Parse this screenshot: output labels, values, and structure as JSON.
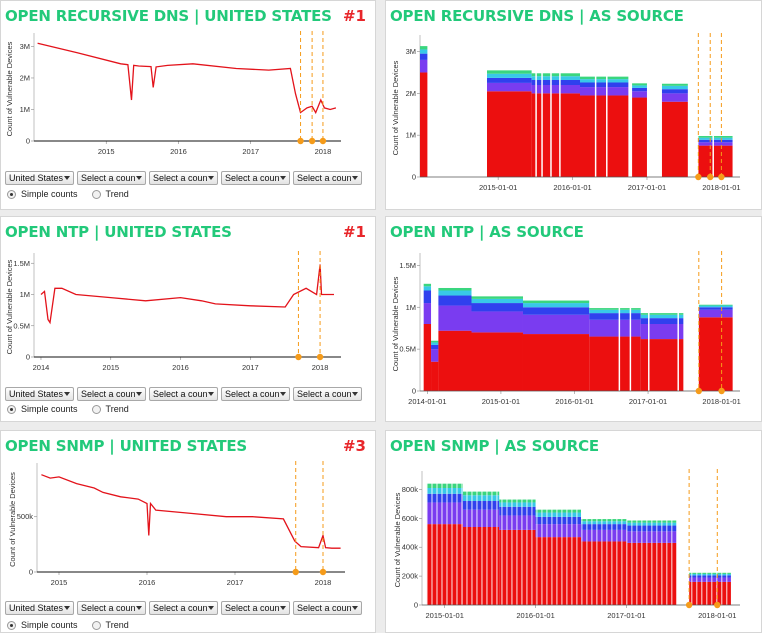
{
  "dropdowns": {
    "country_selected": "United States",
    "placeholder": "Select a coun"
  },
  "radio": {
    "simple": "Simple counts",
    "trend": "Trend"
  },
  "colors": {
    "title_green": "#22c97a",
    "rank_red": "#e8262a",
    "line_red": "#e3131b",
    "marker_orange": "#f59b1a",
    "stack_red": "#ec0f0f",
    "stack_purple": "#7a3cf0",
    "stack_blue": "#3040ee",
    "stack_cyan": "#38c8e8",
    "stack_green": "#3ad67e"
  },
  "panels": [
    {
      "title": "OPEN RECURSIVE DNS | UNITED STATES",
      "rank": "#1",
      "kind": "line",
      "chart_data": {
        "type": "line",
        "ylabel": "Count of Vulnerable Devices",
        "yticks": [
          {
            "v": 0,
            "t": "0"
          },
          {
            "v": 1000000,
            "t": "1M"
          },
          {
            "v": 2000000,
            "t": "2M"
          },
          {
            "v": 3000000,
            "t": "3M"
          }
        ],
        "xticks": [
          {
            "v": 2015,
            "t": "2015"
          },
          {
            "v": 2016,
            "t": "2016"
          },
          {
            "v": 2017,
            "t": "2017"
          },
          {
            "v": 2018,
            "t": "2018"
          }
        ],
        "xlim": [
          2014.0,
          2018.25
        ],
        "ylim": [
          0,
          3300000
        ],
        "series": [
          {
            "x": [
              2014.05,
              2014.6,
              2015.2,
              2015.3,
              2015.35,
              2015.38,
              2015.45,
              2015.62,
              2015.65,
              2015.69,
              2015.85,
              2016.2,
              2016.8,
              2017.25,
              2017.55,
              2017.62,
              2017.69,
              2017.78,
              2017.85,
              2017.9,
              2017.97,
              2018.02,
              2018.1,
              2018.18
            ],
            "y": [
              3100000,
              2800000,
              2450000,
              2420000,
              1300000,
              2400000,
              2380000,
              2360000,
              1700000,
              2350000,
              2400000,
              2450000,
              2300000,
              2250000,
              2300000,
              1500000,
              900000,
              1050000,
              1100000,
              900000,
              1300000,
              1050000,
              1000000,
              1050000
            ]
          }
        ],
        "markers": [
          2017.69,
          2017.85,
          2018.0
        ]
      }
    },
    {
      "title": "OPEN RECURSIVE DNS | AS SOURCE",
      "rank": "",
      "kind": "stack",
      "chart_data": {
        "type": "area",
        "ylabel": "Count of Vulnerable Devices",
        "yticks": [
          {
            "v": 0,
            "t": "0"
          },
          {
            "v": 1000000,
            "t": "1M"
          },
          {
            "v": 2000000,
            "t": "2M"
          },
          {
            "v": 3000000,
            "t": "3M"
          }
        ],
        "xticks": [
          {
            "v": 2015,
            "t": "2015-01-01"
          },
          {
            "v": 2016,
            "t": "2016-01-01"
          },
          {
            "v": 2017,
            "t": "2017-01-01"
          },
          {
            "v": 2018,
            "t": "2018-01-01"
          }
        ],
        "xlim": [
          2013.95,
          2018.25
        ],
        "ylim": [
          0,
          3300000
        ],
        "segments": [
          {
            "from": 2013.95,
            "to": 2014.05,
            "s": [
              2500000,
              300000,
              150000,
              100000,
              80000
            ]
          },
          {
            "from": 2014.85,
            "to": 2015.45,
            "s": [
              2050000,
              200000,
              120000,
              100000,
              80000
            ]
          },
          {
            "from": 2015.45,
            "to": 2016.1,
            "s": [
              2000000,
              200000,
              120000,
              90000,
              70000
            ]
          },
          {
            "from": 2016.1,
            "to": 2016.75,
            "s": [
              1950000,
              200000,
              110000,
              80000,
              60000
            ]
          },
          {
            "from": 2016.8,
            "to": 2017.0,
            "s": [
              1900000,
              150000,
              80000,
              60000,
              50000
            ]
          },
          {
            "from": 2017.2,
            "to": 2017.55,
            "s": [
              1800000,
              200000,
              100000,
              80000,
              50000
            ]
          },
          {
            "from": 2017.69,
            "to": 2018.15,
            "s": [
              750000,
              80000,
              60000,
              50000,
              40000
            ]
          }
        ],
        "gaps": [
          [
            2014.05,
            2014.85
          ],
          [
            2015.5,
            2015.52
          ],
          [
            2015.58,
            2015.6
          ],
          [
            2015.7,
            2015.72
          ],
          [
            2015.82,
            2015.84
          ],
          [
            2016.3,
            2016.32
          ],
          [
            2016.45,
            2016.47
          ],
          [
            2017.0,
            2017.2
          ],
          [
            2017.55,
            2017.69
          ],
          [
            2017.88,
            2017.9
          ]
        ],
        "markers": [
          2017.69,
          2017.85,
          2018.0
        ]
      }
    },
    {
      "title": "OPEN NTP | UNITED STATES",
      "rank": "#1",
      "kind": "line",
      "chart_data": {
        "type": "line",
        "ylabel": "Count of Vulnerable Devices",
        "yticks": [
          {
            "v": 0,
            "t": "0"
          },
          {
            "v": 500000,
            "t": "0.5M"
          },
          {
            "v": 1000000,
            "t": "1M"
          },
          {
            "v": 1500000,
            "t": "1.5M"
          }
        ],
        "xticks": [
          {
            "v": 2014,
            "t": "2014"
          },
          {
            "v": 2015,
            "t": "2015"
          },
          {
            "v": 2016,
            "t": "2016"
          },
          {
            "v": 2017,
            "t": "2017"
          },
          {
            "v": 2018,
            "t": "2018"
          }
        ],
        "xlim": [
          2013.9,
          2018.3
        ],
        "ylim": [
          0,
          1600000
        ],
        "series": [
          {
            "x": [
              2014.0,
              2014.05,
              2014.1,
              2014.13,
              2014.2,
              2014.3,
              2014.5,
              2015.0,
              2015.5,
              2016.0,
              2016.3,
              2016.5,
              2017.0,
              2017.5,
              2017.62,
              2017.8,
              2017.95,
              2018.0,
              2018.02,
              2018.08,
              2018.2
            ],
            "y": [
              1000000,
              1050000,
              600000,
              550000,
              1100000,
              1100000,
              1000000,
              950000,
              900000,
              950000,
              900000,
              850000,
              820000,
              800000,
              1000000,
              1100000,
              1000000,
              1480000,
              1000000,
              1000000,
              1000000
            ]
          }
        ],
        "markers": [
          2017.69,
          2018.0
        ]
      }
    },
    {
      "title": "OPEN NTP | AS SOURCE",
      "rank": "",
      "kind": "stack",
      "chart_data": {
        "type": "area",
        "ylabel": "Count of Vulnerable Devices",
        "yticks": [
          {
            "v": 0,
            "t": "0"
          },
          {
            "v": 500000,
            "t": "0.5M"
          },
          {
            "v": 1000000,
            "t": "1M"
          },
          {
            "v": 1500000,
            "t": "1.5M"
          }
        ],
        "xticks": [
          {
            "v": 2014,
            "t": "2014-01-01"
          },
          {
            "v": 2015,
            "t": "2015-01-01"
          },
          {
            "v": 2016,
            "t": "2016-01-01"
          },
          {
            "v": 2017,
            "t": "2017-01-01"
          },
          {
            "v": 2018,
            "t": "2018-01-01"
          }
        ],
        "xlim": [
          2013.9,
          2018.25
        ],
        "ylim": [
          0,
          1600000
        ],
        "segments": [
          {
            "from": 2013.95,
            "to": 2014.05,
            "s": [
              800000,
              250000,
              150000,
              50000,
              30000
            ]
          },
          {
            "from": 2014.05,
            "to": 2014.15,
            "s": [
              350000,
              150000,
              50000,
              30000,
              20000
            ]
          },
          {
            "from": 2014.15,
            "to": 2014.6,
            "s": [
              720000,
              300000,
              120000,
              60000,
              30000
            ]
          },
          {
            "from": 2014.6,
            "to": 2015.3,
            "s": [
              700000,
              250000,
              100000,
              50000,
              30000
            ]
          },
          {
            "from": 2015.3,
            "to": 2016.2,
            "s": [
              680000,
              230000,
              90000,
              50000,
              30000
            ]
          },
          {
            "from": 2016.2,
            "to": 2016.9,
            "s": [
              650000,
              200000,
              80000,
              40000,
              20000
            ]
          },
          {
            "from": 2016.9,
            "to": 2017.7,
            "s": [
              620000,
              180000,
              70000,
              40000,
              20000
            ]
          },
          {
            "from": 2017.69,
            "to": 2018.15,
            "s": [
              880000,
              90000,
              30000,
              20000,
              10000
            ]
          }
        ],
        "gaps": [
          [
            2016.6,
            2016.62
          ],
          [
            2016.75,
            2016.77
          ],
          [
            2017.0,
            2017.02
          ],
          [
            2017.4,
            2017.42
          ],
          [
            2017.48,
            2017.69
          ]
        ],
        "markers": [
          2017.69,
          2018.0
        ]
      }
    },
    {
      "title": "OPEN SNMP | UNITED STATES",
      "rank": "#3",
      "kind": "line",
      "chart_data": {
        "type": "line",
        "ylabel": "Count of Vulnerable Devices",
        "yticks": [
          {
            "v": 0,
            "t": "0"
          },
          {
            "v": 500000,
            "t": "500k"
          }
        ],
        "xticks": [
          {
            "v": 2015,
            "t": "2015"
          },
          {
            "v": 2016,
            "t": "2016"
          },
          {
            "v": 2017,
            "t": "2017"
          },
          {
            "v": 2018,
            "t": "2018"
          }
        ],
        "xlim": [
          2014.75,
          2018.25
        ],
        "ylim": [
          0,
          950000
        ],
        "series": [
          {
            "x": [
              2014.8,
              2014.9,
              2015.0,
              2015.2,
              2015.4,
              2015.5,
              2015.7,
              2015.9,
              2016.0,
              2016.02,
              2016.04,
              2016.1,
              2016.5,
              2016.9,
              2017.2,
              2017.55,
              2017.68,
              2017.75,
              2017.95,
              2018.0,
              2018.03,
              2018.1,
              2018.2
            ],
            "y": [
              880000,
              850000,
              860000,
              800000,
              760000,
              720000,
              680000,
              660000,
              620000,
              330000,
              620000,
              560000,
              530000,
              500000,
              500000,
              480000,
              280000,
              230000,
              220000,
              330000,
              220000,
              215000,
              215000
            ]
          }
        ],
        "markers": [
          2017.69,
          2018.0
        ]
      }
    },
    {
      "title": "OPEN SNMP | AS SOURCE",
      "rank": "",
      "kind": "stack",
      "chart_data": {
        "type": "area",
        "ylabel": "Count of Vulnerable Devices",
        "yticks": [
          {
            "v": 0,
            "t": "0"
          },
          {
            "v": 200000,
            "t": "200k"
          },
          {
            "v": 400000,
            "t": "400k"
          },
          {
            "v": 600000,
            "t": "600k"
          },
          {
            "v": 800000,
            "t": "800k"
          }
        ],
        "xticks": [
          {
            "v": 2015,
            "t": "2015-01-01"
          },
          {
            "v": 2016,
            "t": "2016-01-01"
          },
          {
            "v": 2017,
            "t": "2017-01-01"
          },
          {
            "v": 2018,
            "t": "2018-01-01"
          }
        ],
        "xlim": [
          2014.75,
          2018.25
        ],
        "ylim": [
          0,
          900000
        ],
        "segments": [
          {
            "from": 2014.8,
            "to": 2015.2,
            "s": [
              560000,
              150000,
              60000,
              40000,
              30000
            ]
          },
          {
            "from": 2015.2,
            "to": 2015.6,
            "s": [
              540000,
              120000,
              60000,
              40000,
              25000
            ]
          },
          {
            "from": 2015.6,
            "to": 2016.0,
            "s": [
              520000,
              100000,
              60000,
              30000,
              20000
            ]
          },
          {
            "from": 2016.0,
            "to": 2016.5,
            "s": [
              470000,
              90000,
              50000,
              30000,
              20000
            ]
          },
          {
            "from": 2016.5,
            "to": 2017.0,
            "s": [
              440000,
              80000,
              40000,
              20000,
              15000
            ]
          },
          {
            "from": 2017.0,
            "to": 2017.55,
            "s": [
              430000,
              80000,
              40000,
              20000,
              15000
            ]
          },
          {
            "from": 2017.69,
            "to": 2018.15,
            "s": [
              160000,
              30000,
              15000,
              10000,
              8000
            ]
          }
        ],
        "gaps": [
          [
            2017.55,
            2017.69
          ]
        ],
        "ribs": 0.055,
        "markers": [
          2017.69,
          2018.0
        ]
      }
    }
  ]
}
